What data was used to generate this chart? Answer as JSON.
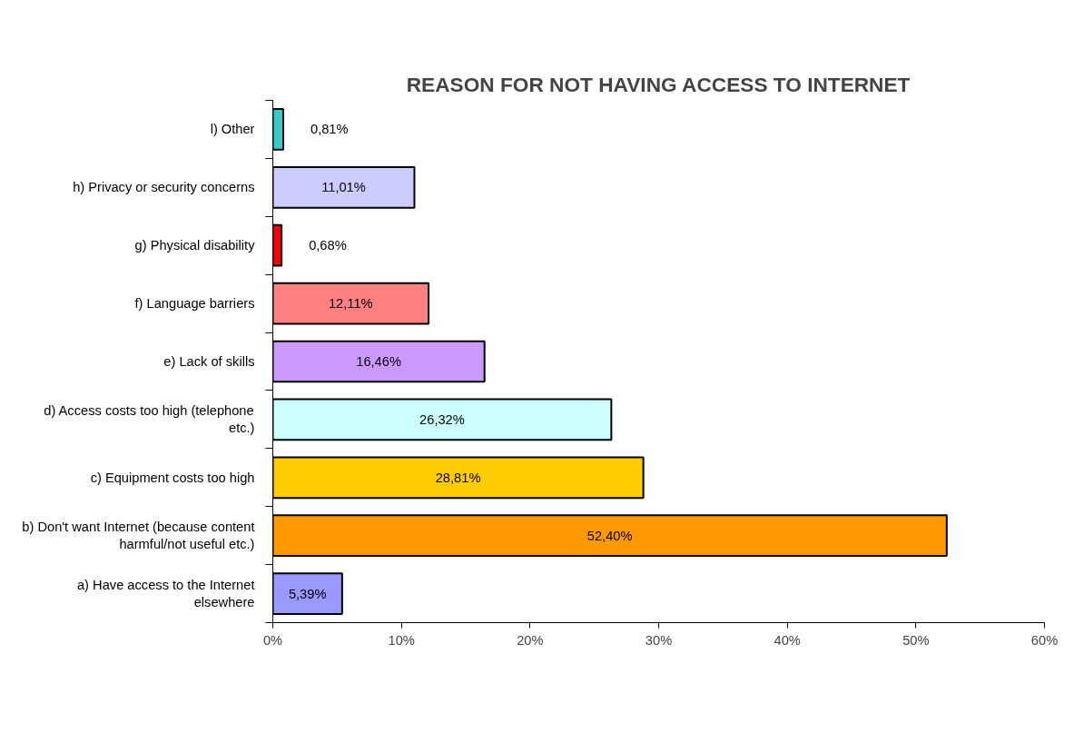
{
  "chart_data": {
    "type": "bar",
    "orientation": "horizontal",
    "title": "REASON FOR NOT HAVING ACCESS TO INTERNET",
    "categories": [
      "l) Other",
      "h) Privacy or security concerns",
      "g) Physical disability",
      "f) Language barriers",
      "e) Lack of skills",
      "d) Access costs too high (telephone etc.)",
      "c) Equipment costs too high",
      "b) Don't want Internet (because content harmful/not useful etc.)",
      "a) Have access to the Internet elsewhere"
    ],
    "values": [
      0.81,
      11.01,
      0.68,
      12.11,
      16.46,
      26.32,
      28.81,
      52.4,
      5.39
    ],
    "colors": [
      "#33cccc",
      "#ccccff",
      "#ff0000",
      "#ff8080",
      "#cc99ff",
      "#ccffff",
      "#ffcc00",
      "#ff9900",
      "#9999ff"
    ],
    "value_labels": [
      "0,81%",
      "11,01%",
      "0,68%",
      "12,11%",
      "16,46%",
      "26,32%",
      "28,81%",
      "52,40%",
      "5,39%"
    ],
    "xlim": [
      0,
      60
    ],
    "xticks": [
      {
        "value": 0,
        "label": "0%"
      },
      {
        "value": 10,
        "label": "10%"
      },
      {
        "value": 20,
        "label": "20%"
      },
      {
        "value": 30,
        "label": "30%"
      },
      {
        "value": 40,
        "label": "40%"
      },
      {
        "value": 50,
        "label": "50%"
      },
      {
        "value": 60,
        "label": "60%"
      }
    ],
    "grid": false
  }
}
